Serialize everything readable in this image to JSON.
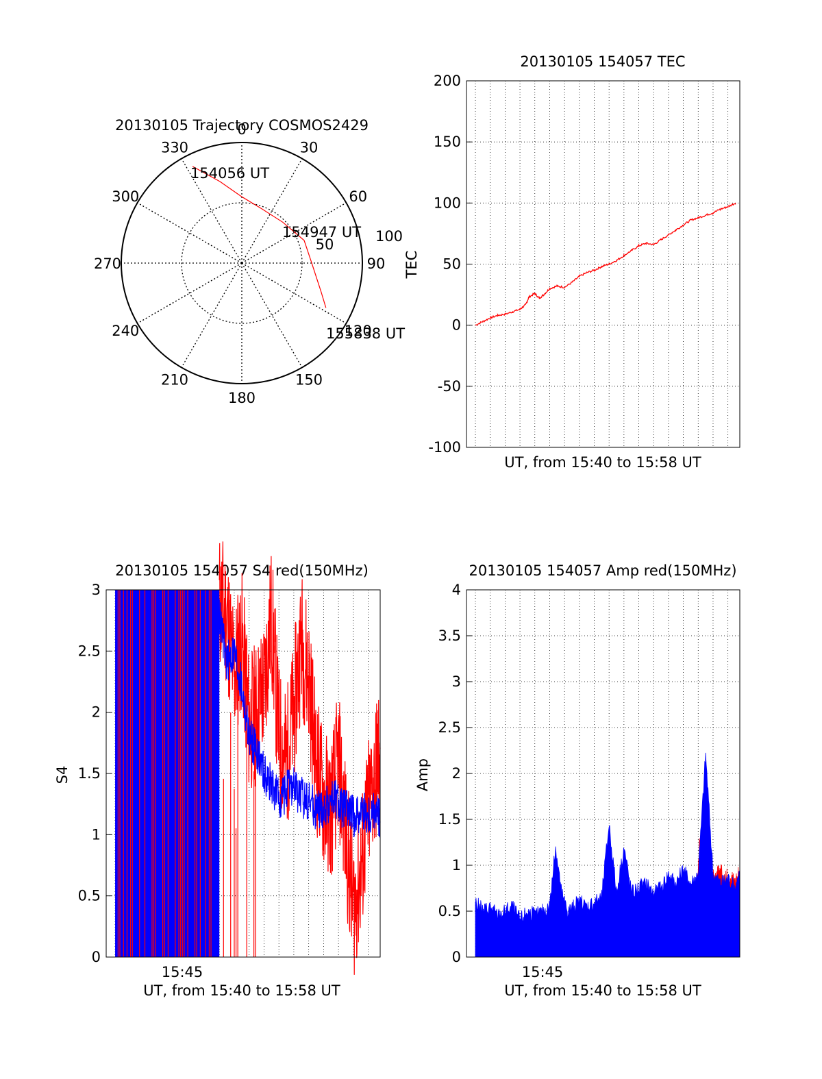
{
  "chart_data": [
    {
      "type": "polar",
      "title": "20130105 Trajectory COSMOS2429",
      "azimuth_labels": [
        "0",
        "30",
        "60",
        "90",
        "120",
        "150",
        "180",
        "210",
        "240",
        "270",
        "300",
        "330"
      ],
      "radius_labels": [
        "50",
        "100"
      ],
      "rlim": [
        0,
        100
      ],
      "grid": true,
      "track_color": "#ff0000",
      "track": [
        {
          "az": 333,
          "r": 90
        },
        {
          "az": 345,
          "r": 70
        },
        {
          "az": 0,
          "r": 55
        },
        {
          "az": 20,
          "r": 48
        },
        {
          "az": 45,
          "r": 48
        },
        {
          "az": 70,
          "r": 55
        },
        {
          "az": 90,
          "r": 58
        },
        {
          "az": 110,
          "r": 70
        },
        {
          "az": 118,
          "r": 79
        }
      ],
      "annotations": [
        "154056 UT",
        "154947 UT",
        "155838 UT"
      ]
    },
    {
      "type": "line",
      "title": "20130105 154057 TEC",
      "xlabel": "UT, from 15:40 to 15:58 UT",
      "ylabel": "TEC",
      "ylim": [
        -100,
        200
      ],
      "yticks": [
        "-100",
        "-50",
        "0",
        "50",
        "100",
        "150",
        "200"
      ],
      "xlim_minutes": [
        -0.6,
        17.8
      ],
      "grid": true,
      "series": [
        {
          "color": "#ff0000",
          "x": [
            0,
            0.5,
            1,
            1.5,
            2,
            2.5,
            3,
            3.4,
            3.6,
            4,
            4.3,
            4.6,
            5,
            5.5,
            6,
            6.5,
            7,
            7.5,
            8,
            8.5,
            9,
            9.5,
            10,
            10.5,
            11,
            11.5,
            12,
            12.5,
            13,
            13.5,
            14,
            14.5,
            15,
            15.5,
            16,
            16.5,
            17,
            17.5
          ],
          "y": [
            0,
            3,
            6,
            8,
            9,
            11,
            13,
            17,
            23,
            26,
            22,
            25,
            30,
            32,
            31,
            35,
            40,
            43,
            45,
            48,
            50,
            53,
            57,
            61,
            65,
            67,
            66,
            70,
            74,
            78,
            82,
            86,
            88,
            90,
            92,
            95,
            97,
            100
          ]
        }
      ]
    },
    {
      "type": "line",
      "title": "20130105 154057 S4 red(150MHz)",
      "xlabel": "UT, from 15:40 to 15:58 UT",
      "ylabel": "S4",
      "ylim": [
        0,
        3
      ],
      "yticks": [
        "0",
        "0.5",
        "1",
        "1.5",
        "2",
        "2.5",
        "3"
      ],
      "xticks": [
        "15:45"
      ],
      "xlim_minutes": [
        -0.6,
        17.8
      ],
      "grid": true,
      "series": [
        {
          "color": "#ff0000",
          "x": [
            7,
            7.5,
            8,
            8.5,
            9,
            9.5,
            10,
            10.5,
            11,
            11.5,
            12,
            12.5,
            13,
            13.5,
            14,
            14.5,
            15,
            15.5,
            16,
            16.5,
            17,
            17.5,
            17.8
          ],
          "y": [
            2.9,
            2.8,
            2.3,
            2.6,
            1.9,
            2.0,
            2.2,
            2.8,
            1.8,
            1.6,
            2.0,
            2.6,
            2.3,
            1.6,
            1.3,
            1.2,
            1.6,
            1.0,
            0.4,
            0.7,
            1.2,
            1.5,
            1.7
          ]
        },
        {
          "color": "#0000ff",
          "x": [
            7,
            7.5,
            8,
            8.5,
            9,
            9.5,
            10,
            10.5,
            11,
            11.5,
            12,
            12.5,
            13,
            13.5,
            14,
            14.5,
            15,
            15.5,
            16,
            16.5,
            17,
            17.5,
            17.8
          ],
          "y": [
            2.8,
            2.4,
            2.5,
            2.2,
            1.8,
            1.7,
            1.5,
            1.4,
            1.3,
            1.35,
            1.4,
            1.3,
            1.3,
            1.2,
            1.2,
            1.3,
            1.25,
            1.2,
            1.15,
            1.2,
            1.15,
            1.2,
            1.1
          ]
        }
      ]
    },
    {
      "type": "line",
      "title": "20130105 154057 Amp red(150MHz)",
      "xlabel": "UT, from 15:40 to 15:58 UT",
      "ylabel": "Amp",
      "ylim": [
        0,
        4
      ],
      "yticks": [
        "0",
        "0.5",
        "1",
        "1.5",
        "2",
        "2.5",
        "3",
        "3.5",
        "4"
      ],
      "xticks": [
        "15:45"
      ],
      "xlim_minutes": [
        -0.6,
        17.8
      ],
      "grid": true,
      "series": [
        {
          "color": "#ff0000",
          "x": [
            14.9,
            15.1,
            15.3,
            15.5,
            15.7,
            15.9,
            16.1,
            16.3,
            16.5,
            16.7,
            16.9,
            17.1,
            17.3,
            17.5,
            17.7
          ],
          "y": [
            0.6,
            1.3,
            1.0,
            1.1,
            0.9,
            1.0,
            0.8,
            0.9,
            1.0,
            0.8,
            0.9,
            0.75,
            0.85,
            0.8,
            0.9
          ]
        },
        {
          "color": "#0000ff",
          "x": [
            0,
            0.5,
            1,
            1.5,
            2,
            2.5,
            3,
            3.5,
            4,
            4.5,
            5,
            5.4,
            5.8,
            6.2,
            6.6,
            7,
            7.5,
            8,
            8.5,
            9,
            9.5,
            10,
            10.5,
            11,
            11.5,
            12,
            12.5,
            13,
            13.5,
            14,
            14.5,
            15,
            15.5,
            16,
            16.5,
            17,
            17.5,
            17.8
          ],
          "y": [
            0.6,
            0.5,
            0.55,
            0.45,
            0.5,
            0.55,
            0.4,
            0.5,
            0.45,
            0.5,
            0.55,
            1.2,
            0.7,
            0.5,
            0.55,
            0.6,
            0.55,
            0.6,
            0.65,
            1.45,
            0.7,
            1.2,
            0.7,
            0.75,
            0.8,
            0.7,
            0.75,
            0.9,
            0.8,
            0.95,
            0.8,
            0.9,
            2.2,
            0.9,
            0.8,
            0.85,
            0.75,
            0.9
          ]
        }
      ]
    }
  ]
}
